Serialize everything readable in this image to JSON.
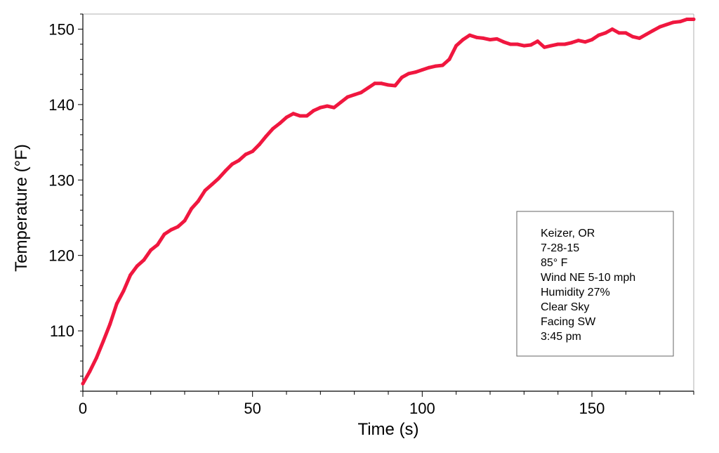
{
  "colors": {
    "series": "#f0173f",
    "ylabel": "#f0173f",
    "axis": "#000000"
  },
  "annotation": {
    "lines": [
      "Keizer, OR",
      "7-28-15",
      "85° F",
      "Wind NE 5-10 mph",
      "Humidity 27%",
      "Clear Sky",
      "Facing SW",
      "3:45 pm"
    ]
  },
  "chart_data": {
    "type": "line",
    "title": "",
    "xlabel": "Time (s)",
    "ylabel": "Temperature (°F)",
    "xlim": [
      0,
      180
    ],
    "ylim": [
      102,
      152
    ],
    "xticks": [
      0,
      50,
      100,
      150
    ],
    "yticks": [
      110,
      120,
      130,
      140,
      150
    ],
    "grid": false,
    "legend": "none",
    "series": [
      {
        "x": [
          0,
          2,
          4,
          6,
          8,
          10,
          12,
          14,
          16,
          18,
          20,
          22,
          24,
          26,
          28,
          30,
          32,
          34,
          36,
          38,
          40,
          42,
          44,
          46,
          48,
          50,
          52,
          54,
          56,
          58,
          60,
          62,
          64,
          66,
          68,
          70,
          72,
          74,
          76,
          78,
          80,
          82,
          84,
          86,
          88,
          90,
          92,
          94,
          96,
          98,
          100,
          102,
          104,
          106,
          108,
          110,
          112,
          114,
          116,
          118,
          120,
          122,
          124,
          126,
          128,
          130,
          132,
          134,
          136,
          138,
          140,
          142,
          144,
          146,
          148,
          150,
          152,
          154,
          156,
          158,
          160,
          162,
          164,
          166,
          168,
          170,
          172,
          174,
          176,
          178,
          180
        ],
        "y": [
          103.0,
          104.6,
          106.4,
          108.6,
          110.9,
          113.6,
          115.3,
          117.4,
          118.6,
          119.4,
          120.7,
          121.4,
          122.8,
          123.4,
          123.8,
          124.6,
          126.2,
          127.2,
          128.6,
          129.4,
          130.2,
          131.2,
          132.1,
          132.6,
          133.4,
          133.8,
          134.7,
          135.8,
          136.8,
          137.5,
          138.3,
          138.8,
          138.5,
          138.5,
          139.2,
          139.6,
          139.8,
          139.6,
          140.3,
          141.0,
          141.3,
          141.6,
          142.2,
          142.8,
          142.8,
          142.6,
          142.5,
          143.6,
          144.1,
          144.3,
          144.6,
          144.9,
          145.1,
          145.2,
          146.0,
          147.8,
          148.6,
          149.2,
          148.9,
          148.8,
          148.6,
          148.7,
          148.3,
          148.0,
          148.0,
          147.8,
          147.9,
          148.4,
          147.6,
          147.8,
          148.0,
          148.0,
          148.2,
          148.5,
          148.3,
          148.6,
          149.2,
          149.5,
          150.0,
          149.5,
          149.5,
          149.0,
          148.8,
          149.3,
          149.8,
          150.3,
          150.6,
          150.9,
          151.0,
          151.3,
          151.3
        ]
      }
    ]
  }
}
